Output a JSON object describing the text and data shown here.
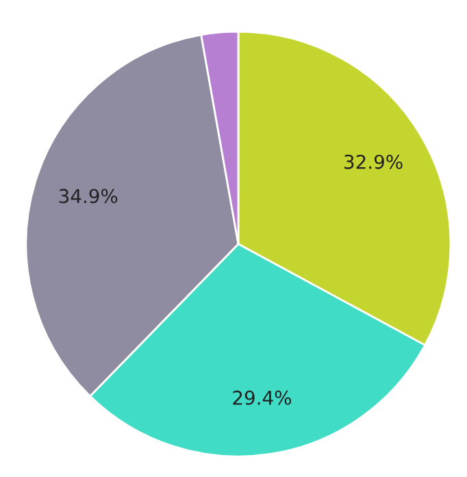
{
  "chart_data": {
    "type": "pie",
    "categories": [
      null,
      null,
      null,
      null
    ],
    "values": [
      32.9,
      29.4,
      34.9,
      2.8
    ],
    "colors": [
      "#c5d52f",
      "#40dcc5",
      "#8f8ba1",
      "#b77fd2"
    ],
    "value_labels": [
      "32.9%",
      "29.4%",
      "34.9%",
      null
    ]
  }
}
